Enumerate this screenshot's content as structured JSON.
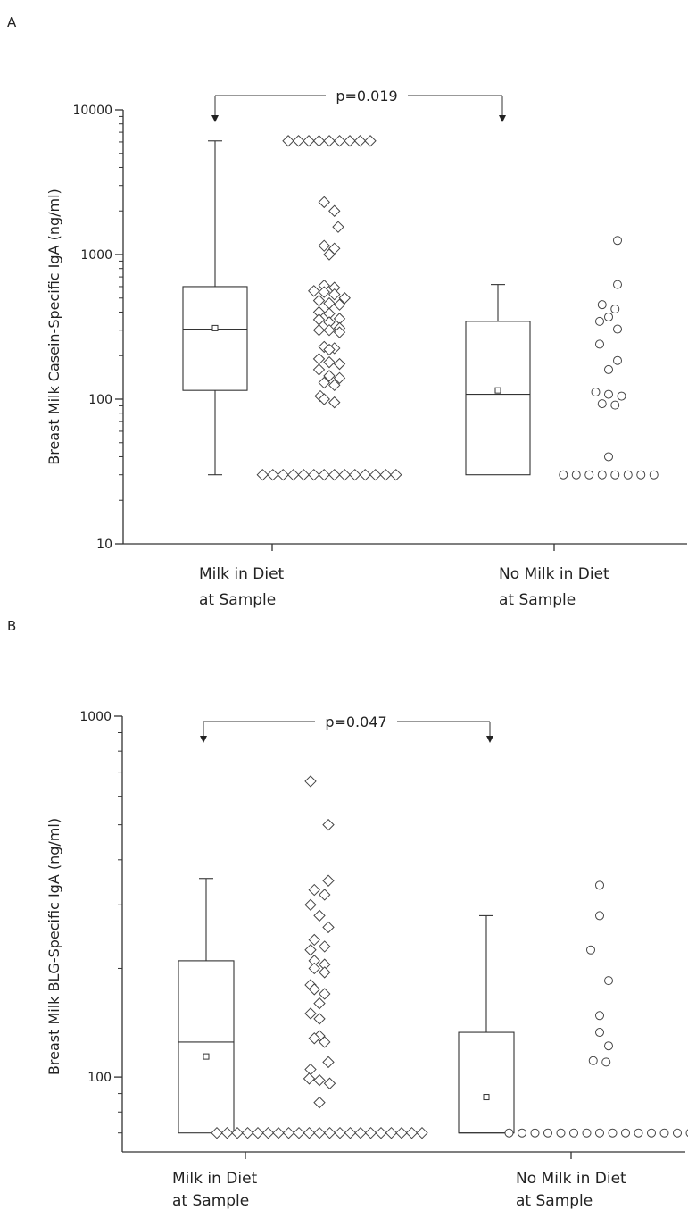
{
  "chart_data": [
    {
      "type": "box",
      "panel_label": "A",
      "ylabel": "Breast Milk Casein-Specific IgA (ng/ml)",
      "yscale": "log",
      "ylim": [
        10,
        10000
      ],
      "yticks": [
        10,
        100,
        1000,
        10000
      ],
      "ytick_labels": [
        "10",
        "100",
        "1000",
        "10000"
      ],
      "categories": [
        "Milk in Diet\nat Sample",
        "No Milk in Diet\nat Sample"
      ],
      "annotation": "p=0.019",
      "groups": [
        {
          "whisker_low": 30,
          "q1": 115,
          "median": 305,
          "q3": 600,
          "whisker_high": 6100,
          "mean": 310,
          "marker": "diamond",
          "points": [
            6100,
            6100,
            6100,
            6100,
            6100,
            6100,
            6100,
            6100,
            6100,
            2300,
            2000,
            1550,
            1150,
            1100,
            1000,
            610,
            590,
            560,
            550,
            530,
            500,
            480,
            460,
            450,
            400,
            390,
            360,
            355,
            340,
            310,
            300,
            300,
            290,
            230,
            225,
            220,
            190,
            180,
            175,
            160,
            145,
            140,
            130,
            125,
            105,
            100,
            95,
            30,
            30,
            30,
            30,
            30,
            30,
            30,
            30,
            30,
            30,
            30,
            30,
            30,
            30
          ]
        },
        {
          "whisker_low": 30,
          "q1": 30,
          "median": 108,
          "q3": 345,
          "whisker_high": 620,
          "mean": 115,
          "marker": "circle",
          "points": [
            1250,
            620,
            450,
            420,
            370,
            345,
            305,
            240,
            185,
            160,
            112,
            108,
            105,
            93,
            91,
            40,
            30,
            30,
            30,
            30,
            30,
            30,
            30,
            30
          ]
        }
      ]
    },
    {
      "type": "box",
      "panel_label": "B",
      "ylabel": "Breast Milk BLG-Specific IgA (ng/ml)",
      "yscale": "log",
      "ylim": [
        62,
        1000
      ],
      "yticks": [
        100,
        1000
      ],
      "ytick_labels": [
        "100",
        "1000"
      ],
      "categories": [
        "Milk in Diet\nat Sample",
        "No Milk in Diet\nat Sample"
      ],
      "annotation": "p=0.047",
      "groups": [
        {
          "whisker_low": 70,
          "q1": 70,
          "median": 125,
          "q3": 210,
          "whisker_high": 355,
          "mean": 114,
          "marker": "diamond",
          "points": [
            660,
            500,
            350,
            330,
            320,
            300,
            280,
            260,
            240,
            230,
            225,
            210,
            205,
            200,
            195,
            180,
            175,
            170,
            160,
            150,
            145,
            130,
            128,
            125,
            110,
            105,
            99,
            98,
            96,
            85,
            70,
            70,
            70,
            70,
            70,
            70,
            70,
            70,
            70,
            70,
            70,
            70,
            70,
            70,
            70,
            70,
            70,
            70,
            70,
            70,
            70
          ]
        },
        {
          "whisker_low": 70,
          "q1": 70,
          "median": 70,
          "q3": 133,
          "whisker_high": 280,
          "mean": 88,
          "marker": "circle",
          "points": [
            340,
            280,
            225,
            185,
            148,
            133,
            122,
            111,
            110,
            70,
            70,
            70,
            70,
            70,
            70,
            70,
            70,
            70,
            70,
            70,
            70,
            70,
            70,
            70
          ]
        }
      ]
    }
  ]
}
